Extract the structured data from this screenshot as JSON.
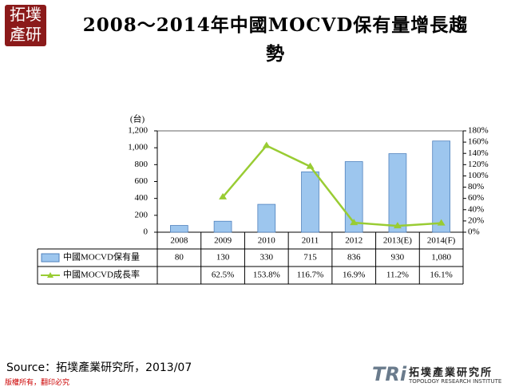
{
  "badge": "拓墣產研",
  "source": "Source：拓墣產業研究所，2013/07",
  "footer": {
    "copyright": "版權所有，翻印必究",
    "logo_mark": "TRi",
    "logo_name": "拓墣產業研究所",
    "logo_subtitle": "TOPOLOGY RESEARCH INSTITUTE"
  },
  "chart_data": {
    "type": "bar",
    "title": "2008～2014年中國MOCVD保有量增長趨勢",
    "y_label": "(台)",
    "categories": [
      "2008",
      "2009",
      "2010",
      "2011",
      "2012",
      "2013(E)",
      "2014(F)"
    ],
    "series": [
      {
        "name": "中國MOCVD保有量",
        "type": "bar",
        "color": "#9dc6ee",
        "values": [
          80,
          130,
          330,
          715,
          836,
          930,
          1080
        ],
        "value_labels": [
          "80",
          "130",
          "330",
          "715",
          "836",
          "930",
          "1,080"
        ]
      },
      {
        "name": "中國MOCVD成長率",
        "type": "line",
        "axis": "y2",
        "color": "#99cc33",
        "values": [
          null,
          62.5,
          153.8,
          116.7,
          16.9,
          11.2,
          16.1
        ],
        "value_labels": [
          null,
          "62.5%",
          "153.8%",
          "116.7%",
          "16.9%",
          "11.2%",
          "16.1%"
        ]
      }
    ],
    "ylim": [
      0,
      1200
    ],
    "yticks": [
      0,
      200,
      400,
      600,
      800,
      {
        "value": 1000,
        "label": "1,000"
      },
      {
        "value": 1200,
        "label": "1,200"
      }
    ],
    "y2lim": [
      0,
      180
    ],
    "y2ticks": [
      {
        "value": 0,
        "label": "0%"
      },
      {
        "value": 20,
        "label": "20%"
      },
      {
        "value": 40,
        "label": "40%"
      },
      {
        "value": 60,
        "label": "60%"
      },
      {
        "value": 80,
        "label": "80%"
      },
      {
        "value": 100,
        "label": "100%"
      },
      {
        "value": 120,
        "label": "120%"
      },
      {
        "value": 140,
        "label": "140%"
      },
      {
        "value": 160,
        "label": "160%"
      },
      {
        "value": 180,
        "label": "180%"
      }
    ],
    "grid": false
  }
}
